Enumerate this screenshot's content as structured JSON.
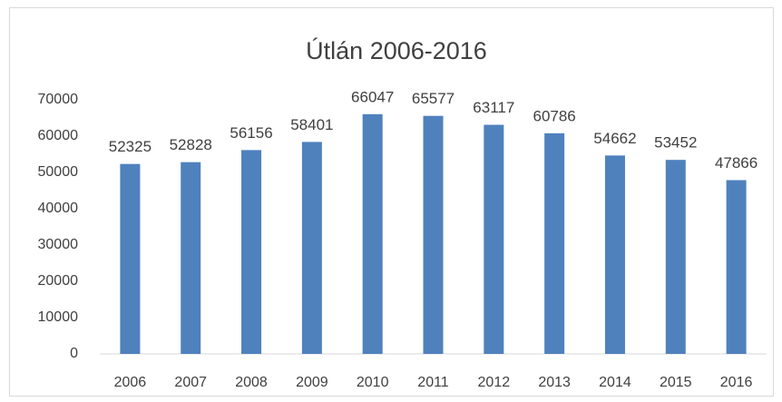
{
  "chart_data": {
    "type": "bar",
    "title": "Útlán 2006-2016",
    "categories": [
      "2006",
      "2007",
      "2008",
      "2009",
      "2010",
      "2011",
      "2012",
      "2013",
      "2014",
      "2015",
      "2016"
    ],
    "values": [
      52325,
      52828,
      56156,
      58401,
      66047,
      65577,
      63117,
      60786,
      54662,
      53452,
      47866
    ],
    "color": "#4f81bd",
    "ylim": [
      0,
      70000
    ],
    "yticks": [
      0,
      10000,
      20000,
      30000,
      40000,
      50000,
      60000,
      70000
    ],
    "grid": false
  }
}
